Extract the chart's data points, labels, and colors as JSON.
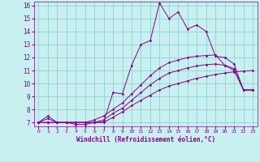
{
  "xlabel": "Windchill (Refroidissement éolien,°C)",
  "background_color": "#c8f0f0",
  "grid_color": "#88cccc",
  "line_color": "#880088",
  "xlim": [
    -0.5,
    23.5
  ],
  "ylim": [
    6.7,
    16.3
  ],
  "xticks": [
    0,
    1,
    2,
    3,
    4,
    5,
    6,
    7,
    8,
    9,
    10,
    11,
    12,
    13,
    14,
    15,
    16,
    17,
    18,
    19,
    20,
    21,
    22,
    23
  ],
  "yticks": [
    7,
    8,
    9,
    10,
    11,
    12,
    13,
    14,
    15,
    16
  ],
  "curve1_x": [
    0,
    1,
    2,
    3,
    4,
    5,
    6,
    7,
    8,
    9,
    10,
    11,
    12,
    13,
    14,
    15,
    16,
    17,
    18,
    19,
    20,
    21,
    22,
    23
  ],
  "curve1_y": [
    7.0,
    7.3,
    7.0,
    7.0,
    6.85,
    6.85,
    7.0,
    7.05,
    9.3,
    9.2,
    11.4,
    13.0,
    13.3,
    16.2,
    15.0,
    15.5,
    14.2,
    14.5,
    14.0,
    12.1,
    12.0,
    11.5,
    9.5,
    9.5
  ],
  "curve2_x": [
    0,
    1,
    2,
    3,
    4,
    5,
    6,
    7,
    8,
    9,
    10,
    11,
    12,
    13,
    14,
    15,
    16,
    17,
    18,
    19,
    20,
    21,
    22,
    23
  ],
  "curve2_y": [
    7.0,
    7.5,
    7.0,
    7.0,
    7.0,
    7.0,
    7.2,
    7.5,
    8.0,
    8.5,
    9.2,
    9.9,
    10.6,
    11.2,
    11.6,
    11.8,
    12.0,
    12.1,
    12.15,
    12.2,
    11.4,
    11.0,
    9.5,
    9.5
  ],
  "curve3_x": [
    0,
    1,
    2,
    3,
    4,
    5,
    6,
    7,
    8,
    9,
    10,
    11,
    12,
    13,
    14,
    15,
    16,
    17,
    18,
    19,
    20,
    21,
    22,
    23
  ],
  "curve3_y": [
    7.0,
    7.0,
    7.0,
    7.0,
    7.0,
    7.0,
    7.0,
    7.2,
    7.7,
    8.1,
    8.7,
    9.3,
    9.9,
    10.4,
    10.8,
    11.0,
    11.2,
    11.35,
    11.45,
    11.5,
    11.4,
    11.15,
    9.5,
    9.5
  ],
  "curve4_x": [
    0,
    1,
    2,
    3,
    4,
    5,
    6,
    7,
    8,
    9,
    10,
    11,
    12,
    13,
    14,
    15,
    16,
    17,
    18,
    19,
    20,
    21,
    22,
    23
  ],
  "curve4_y": [
    7.0,
    7.0,
    7.0,
    7.0,
    7.0,
    7.0,
    7.0,
    7.0,
    7.4,
    7.8,
    8.3,
    8.7,
    9.1,
    9.5,
    9.8,
    10.0,
    10.2,
    10.4,
    10.55,
    10.7,
    10.8,
    10.9,
    10.95,
    11.0
  ]
}
